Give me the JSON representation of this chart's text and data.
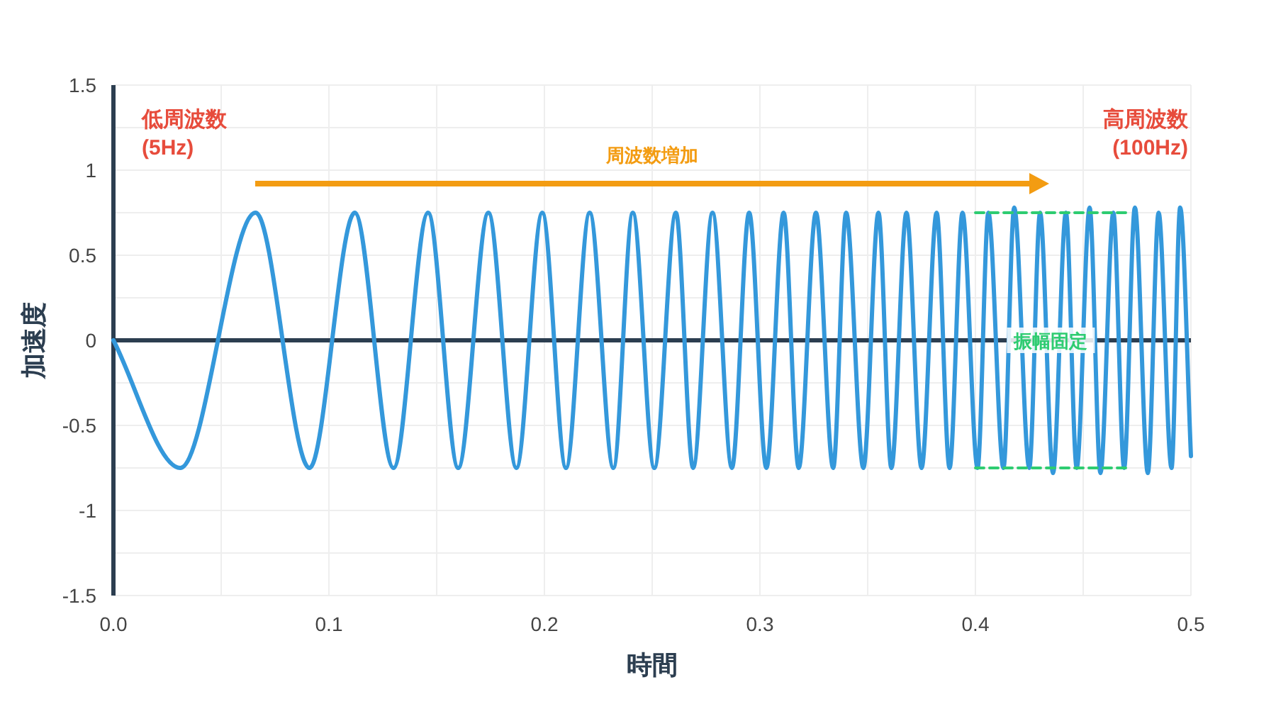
{
  "chart_data": {
    "type": "line",
    "xlabel": "時間",
    "ylabel": "加速度",
    "xlim": [
      0,
      0.5
    ],
    "ylim": [
      -1.5,
      1.5
    ],
    "xticks": [
      {
        "value": 0,
        "label": "0.0"
      },
      {
        "value": 0.05,
        "label": null
      },
      0.1,
      {
        "value": 0.15,
        "label": null
      },
      0.2,
      {
        "value": 0.25,
        "label": null
      },
      0.3,
      {
        "value": 0.35,
        "label": null
      },
      0.4,
      {
        "value": 0.45,
        "label": null
      },
      0.5
    ],
    "yticks": [
      -1.5,
      {
        "value": -1.25,
        "label": null
      },
      -1,
      {
        "value": -0.75,
        "label": null
      },
      -0.5,
      {
        "value": -0.25,
        "label": null
      },
      0,
      {
        "value": 0.25,
        "label": null
      },
      0.5,
      {
        "value": 0.75,
        "label": null
      },
      1,
      {
        "value": 1.25,
        "label": null
      },
      1.5
    ],
    "grid": true,
    "marker": "none",
    "line_style": "solid",
    "ref_lines": [
      {
        "axis": "y",
        "value": 0,
        "color": "#2c3e50"
      }
    ],
    "series": [
      {
        "color": "#3498db",
        "x": [
          0,
          0.031,
          0.066,
          0.091,
          0.112,
          0.13,
          0.146,
          0.16,
          0.174,
          0.187,
          0.199,
          0.21,
          0.221,
          0.232,
          0.241,
          0.251,
          0.261,
          0.269,
          0.278,
          0.287,
          0.295,
          0.303,
          0.311,
          0.318,
          0.326,
          0.334,
          0.34,
          0.348,
          0.355,
          0.361,
          0.368,
          0.375,
          0.382,
          0.388,
          0.394,
          0.401,
          0.406,
          0.413,
          0.418,
          0.425,
          0.43,
          0.436,
          0.442,
          0.447,
          0.453,
          0.458,
          0.464,
          0.469,
          0.474,
          0.48,
          0.485,
          0.491,
          0.495,
          0.5
        ],
        "values": [
          0,
          -0.75,
          0.75,
          -0.75,
          0.75,
          -0.75,
          0.75,
          -0.75,
          0.75,
          -0.75,
          0.75,
          -0.75,
          0.75,
          -0.75,
          0.75,
          -0.75,
          0.75,
          -0.75,
          0.75,
          -0.75,
          0.75,
          -0.75,
          0.75,
          -0.75,
          0.75,
          -0.75,
          0.75,
          -0.75,
          0.75,
          -0.75,
          0.75,
          -0.75,
          0.75,
          -0.75,
          0.75,
          -0.75,
          0.75,
          -0.75,
          0.78,
          -0.75,
          0.75,
          -0.78,
          0.75,
          -0.75,
          0.78,
          -0.78,
          0.75,
          -0.75,
          0.78,
          -0.78,
          0.75,
          -0.75,
          0.78,
          -0.68
        ]
      },
      {
        "color": "#2ecc71",
        "line_style": "dashed",
        "x": [
          0.4,
          0.47
        ],
        "values": [
          0.75,
          0.75
        ]
      },
      {
        "color": "#2ecc71",
        "line_style": "dashed",
        "x": [
          0.4,
          0.47
        ],
        "values": [
          -0.75,
          -0.75
        ]
      }
    ],
    "annotations": [
      "低周波数\n(5Hz)",
      "高周波数\n(100Hz)",
      "周波数増加",
      {
        "text": "振幅固定",
        "x": 0.435,
        "y": 0
      }
    ]
  }
}
